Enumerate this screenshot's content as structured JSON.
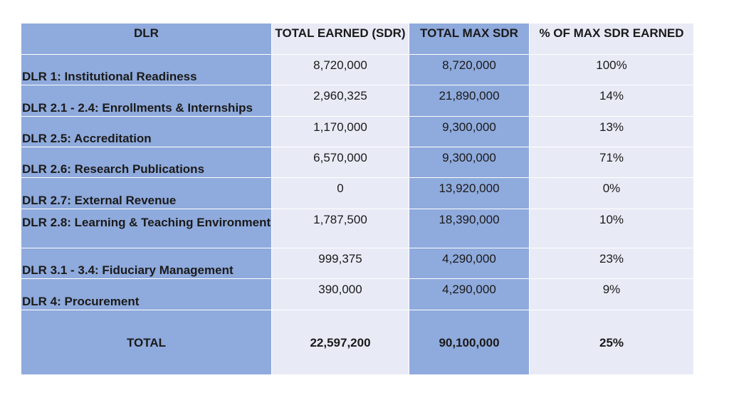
{
  "headers": {
    "dlr": "DLR",
    "total_earned": "TOTAL EARNED (SDR)",
    "total_max": "TOTAL MAX SDR",
    "pct_earned": "% OF MAX SDR EARNED"
  },
  "rows": [
    {
      "label": "DLR 1: Institutional Readiness",
      "earned": "8,720,000",
      "max": "8,720,000",
      "pct": "100%"
    },
    {
      "label": "DLR 2.1 - 2.4: Enrollments & Internships",
      "earned": "2,960,325",
      "max": "21,890,000",
      "pct": "14%"
    },
    {
      "label": "DLR 2.5: Accreditation",
      "earned": "1,170,000",
      "max": "9,300,000",
      "pct": "13%"
    },
    {
      "label": "DLR 2.6: Research Publications",
      "earned": "6,570,000",
      "max": "9,300,000",
      "pct": "71%"
    },
    {
      "label": "DLR 2.7: External Revenue",
      "earned": "0",
      "max": "13,920,000",
      "pct": "0%"
    },
    {
      "label": "DLR 2.8: Learning & Teaching Environment",
      "earned": "1,787,500",
      "max": "18,390,000",
      "pct": "10%"
    },
    {
      "label": "DLR 3.1 - 3.4: Fiduciary Management",
      "earned": "999,375",
      "max": "4,290,000",
      "pct": "23%"
    },
    {
      "label": "DLR 4: Procurement",
      "earned": "390,000",
      "max": "4,290,000",
      "pct": "9%"
    }
  ],
  "total": {
    "label": "TOTAL",
    "earned": "22,597,200",
    "max": "90,100,000",
    "pct": "25%"
  },
  "colors": {
    "dark_column": "#8faadc",
    "light_column": "#e8ebf6"
  }
}
